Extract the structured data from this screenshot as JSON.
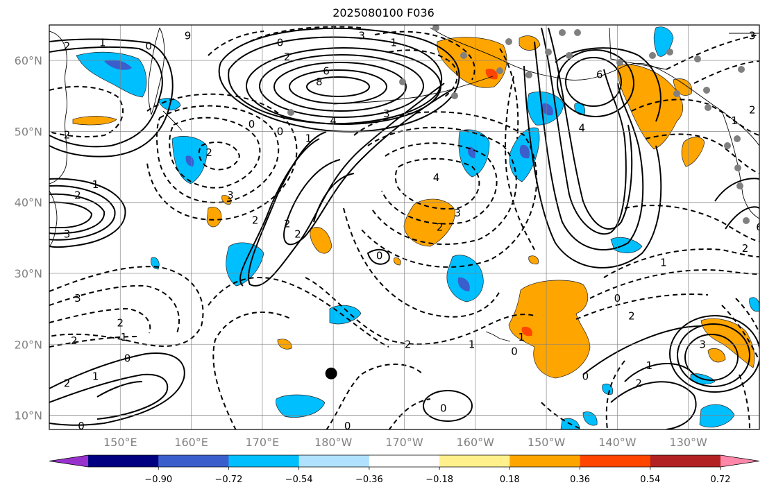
{
  "title": "2025080100 F036",
  "map": {
    "lon_range": [
      140,
      240
    ],
    "lat_range": [
      8,
      65
    ],
    "grid": true,
    "lon_ticks": [
      {
        "value": 150,
        "label": "150°E"
      },
      {
        "value": 160,
        "label": "160°E"
      },
      {
        "value": 170,
        "label": "170°E"
      },
      {
        "value": 180,
        "label": "180°W"
      },
      {
        "value": 190,
        "label": "170°W"
      },
      {
        "value": 200,
        "label": "160°W"
      },
      {
        "value": 210,
        "label": "150°W"
      },
      {
        "value": 220,
        "label": "140°W"
      },
      {
        "value": 230,
        "label": "130°W"
      }
    ],
    "lat_ticks": [
      {
        "value": 10,
        "label": "10°N"
      },
      {
        "value": 20,
        "label": "20°N"
      },
      {
        "value": 30,
        "label": "30°N"
      },
      {
        "value": 40,
        "label": "40°N"
      },
      {
        "value": 50,
        "label": "50°N"
      },
      {
        "value": 60,
        "label": "60°N"
      }
    ],
    "marker": {
      "lon": 179.7,
      "lat": 15.9,
      "color": "#000000"
    }
  },
  "colorbar": {
    "colors": [
      "#9932cc",
      "#000080",
      "#3a5fcd",
      "#00bfff",
      "#b0e2ff",
      "#ffffff",
      "#fff08c",
      "#ffa500",
      "#ff4500",
      "#b22222",
      "#ff88aa"
    ],
    "labels": [
      "−0.90",
      "−0.72",
      "−0.54",
      "−0.36",
      "−0.18",
      "0.18",
      "0.36",
      "0.54",
      "0.72",
      "0.90"
    ],
    "extend": "both"
  },
  "contour_labels": [
    {
      "text": "1",
      "lon": 147.5,
      "lat": 62.5
    },
    {
      "text": "2",
      "lon": 142.5,
      "lat": 62.0
    },
    {
      "text": "0",
      "lon": 154.0,
      "lat": 62.0
    },
    {
      "text": "9",
      "lon": 159.5,
      "lat": 63.5
    },
    {
      "text": "0",
      "lon": 172.5,
      "lat": 62.5
    },
    {
      "text": "2",
      "lon": 173.5,
      "lat": 60.5
    },
    {
      "text": "6",
      "lon": 179.0,
      "lat": 58.5
    },
    {
      "text": "8",
      "lon": 178.0,
      "lat": 57.0
    },
    {
      "text": "4",
      "lon": 180.0,
      "lat": 51.5
    },
    {
      "text": "3",
      "lon": 187.5,
      "lat": 52.5
    },
    {
      "text": "0",
      "lon": 168.5,
      "lat": 51.0
    },
    {
      "text": "0",
      "lon": 172.5,
      "lat": 50.0
    },
    {
      "text": "1",
      "lon": 176.5,
      "lat": 49.0
    },
    {
      "text": "2",
      "lon": 162.5,
      "lat": 47.0
    },
    {
      "text": "2",
      "lon": 142.5,
      "lat": 49.5
    },
    {
      "text": "3",
      "lon": 165.5,
      "lat": 41.0
    },
    {
      "text": "2",
      "lon": 169.0,
      "lat": 37.5
    },
    {
      "text": "2",
      "lon": 173.5,
      "lat": 37.0
    },
    {
      "text": "2",
      "lon": 175.0,
      "lat": 35.5
    },
    {
      "text": "4",
      "lon": 194.5,
      "lat": 43.5
    },
    {
      "text": "3",
      "lon": 197.5,
      "lat": 38.5
    },
    {
      "text": "2",
      "lon": 195.0,
      "lat": 36.5
    },
    {
      "text": "0",
      "lon": 186.5,
      "lat": 32.5
    },
    {
      "text": "2",
      "lon": 144.0,
      "lat": 41.0
    },
    {
      "text": "3",
      "lon": 142.5,
      "lat": 35.5
    },
    {
      "text": "1",
      "lon": 146.5,
      "lat": 42.5
    },
    {
      "text": "3",
      "lon": 144.0,
      "lat": 26.5
    },
    {
      "text": "2",
      "lon": 150.0,
      "lat": 23.0
    },
    {
      "text": "1",
      "lon": 150.5,
      "lat": 21.0
    },
    {
      "text": "2",
      "lon": 143.5,
      "lat": 20.5
    },
    {
      "text": "0",
      "lon": 151.0,
      "lat": 18.0
    },
    {
      "text": "1",
      "lon": 146.5,
      "lat": 15.5
    },
    {
      "text": "2",
      "lon": 142.5,
      "lat": 14.5
    },
    {
      "text": "0",
      "lon": 144.5,
      "lat": 8.5
    },
    {
      "text": "2",
      "lon": 190.5,
      "lat": 20.0
    },
    {
      "text": "1",
      "lon": 199.5,
      "lat": 20.0
    },
    {
      "text": "0",
      "lon": 182.0,
      "lat": 8.5
    },
    {
      "text": "0",
      "lon": 195.5,
      "lat": 11.0
    },
    {
      "text": "1",
      "lon": 206.5,
      "lat": 21.0
    },
    {
      "text": "0",
      "lon": 205.5,
      "lat": 19.0
    },
    {
      "text": "0",
      "lon": 215.5,
      "lat": 15.5
    },
    {
      "text": "0",
      "lon": 220.0,
      "lat": 26.5
    },
    {
      "text": "2",
      "lon": 222.0,
      "lat": 24.0
    },
    {
      "text": "1",
      "lon": 226.5,
      "lat": 31.5
    },
    {
      "text": "2",
      "lon": 238.0,
      "lat": 33.5
    },
    {
      "text": "6",
      "lon": 217.5,
      "lat": 58.0
    },
    {
      "text": "4",
      "lon": 215.0,
      "lat": 50.5
    },
    {
      "text": "3",
      "lon": 239.0,
      "lat": 63.5
    },
    {
      "text": "2",
      "lon": 239.0,
      "lat": 53.0
    },
    {
      "text": "1",
      "lon": 236.5,
      "lat": 51.5
    },
    {
      "text": "3",
      "lon": 232.0,
      "lat": 20.0
    },
    {
      "text": "1",
      "lon": 224.5,
      "lat": 17.0
    },
    {
      "text": "2",
      "lon": 223.0,
      "lat": 14.5
    },
    {
      "text": "6",
      "lon": 240.0,
      "lat": 36.5
    },
    {
      "text": "1",
      "lon": 188.5,
      "lat": 62.5
    },
    {
      "text": "3",
      "lon": 184.0,
      "lat": 63.5
    }
  ]
}
